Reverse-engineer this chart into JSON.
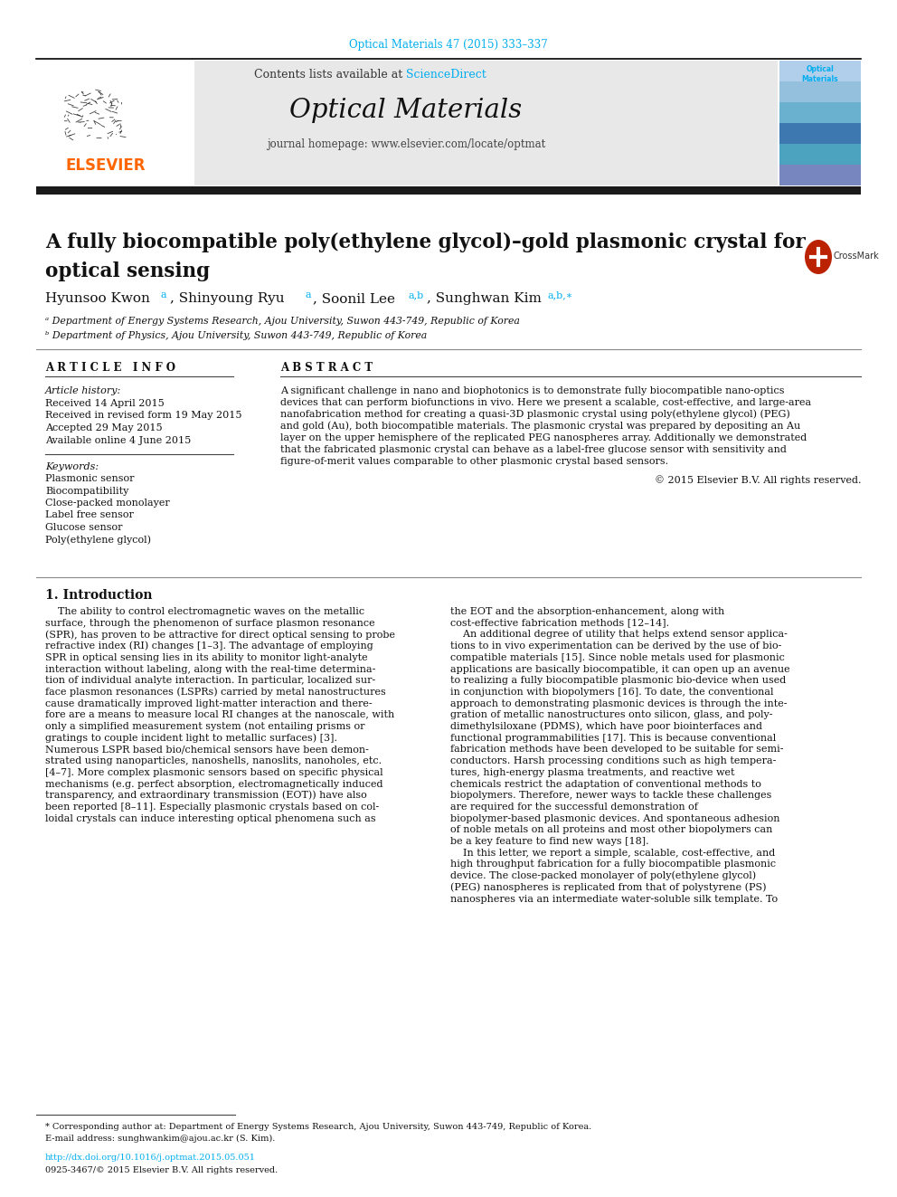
{
  "journal_ref": "Optical Materials 47 (2015) 333–337",
  "journal_ref_color": "#00AEEF",
  "contents_text": "Contents lists available at ",
  "sciencedirect_text": "ScienceDirect",
  "sciencedirect_color": "#00AEEF",
  "journal_name": "Optical Materials",
  "journal_homepage": "journal homepage: www.elsevier.com/locate/optmat",
  "header_bg": "#E8E8E8",
  "black_bar_color": "#1a1a1a",
  "title_line1": "A fully biocompatible poly(ethylene glycol)–gold plasmonic crystal for",
  "title_line2": "optical sensing",
  "affil_a": "ᵃ Department of Energy Systems Research, Ajou University, Suwon 443-749, Republic of Korea",
  "affil_b": "ᵇ Department of Physics, Ajou University, Suwon 443-749, Republic of Korea",
  "article_history_label": "Article history:",
  "received": "Received 14 April 2015",
  "revised": "Received in revised form 19 May 2015",
  "accepted": "Accepted 29 May 2015",
  "available": "Available online 4 June 2015",
  "keywords": [
    "Plasmonic sensor",
    "Biocompatibility",
    "Close-packed monolayer",
    "Label free sensor",
    "Glucose sensor",
    "Poly(ethylene glycol)"
  ],
  "abstract_lines": [
    "A significant challenge in nano and biophotonics is to demonstrate fully biocompatible nano-optics",
    "devices that can perform biofunctions in vivo. Here we present a scalable, cost-effective, and large-area",
    "nanofabrication method for creating a quasi-3D plasmonic crystal using poly(ethylene glycol) (PEG)",
    "and gold (Au), both biocompatible materials. The plasmonic crystal was prepared by depositing an Au",
    "layer on the upper hemisphere of the replicated PEG nanospheres array. Additionally we demonstrated",
    "that the fabricated plasmonic crystal can behave as a label-free glucose sensor with sensitivity and",
    "figure-of-merit values comparable to other plasmonic crystal based sensors."
  ],
  "copyright": "© 2015 Elsevier B.V. All rights reserved.",
  "intro_left": [
    "    The ability to control electromagnetic waves on the metallic",
    "surface, through the phenomenon of surface plasmon resonance",
    "(SPR), has proven to be attractive for direct optical sensing to probe",
    "refractive index (RI) changes [1–3]. The advantage of employing",
    "SPR in optical sensing lies in its ability to monitor light-analyte",
    "interaction without labeling, along with the real-time determina-",
    "tion of individual analyte interaction. In particular, localized sur-",
    "face plasmon resonances (LSPRs) carried by metal nanostructures",
    "cause dramatically improved light-matter interaction and there-",
    "fore are a means to measure local RI changes at the nanoscale, with",
    "only a simplified measurement system (not entailing prisms or",
    "gratings to couple incident light to metallic surfaces) [3].",
    "Numerous LSPR based bio/chemical sensors have been demon-",
    "strated using nanoparticles, nanoshells, nanoslits, nanoholes, etc.",
    "[4–7]. More complex plasmonic sensors based on specific physical",
    "mechanisms (e.g. perfect absorption, electromagnetically induced",
    "transparency, and extraordinary transmission (EOT)) have also",
    "been reported [8–11]. Especially plasmonic crystals based on col-",
    "loidal crystals can induce interesting optical phenomena such as"
  ],
  "intro_right": [
    "the EOT and the absorption-enhancement, along with",
    "cost-effective fabrication methods [12–14].",
    "    An additional degree of utility that helps extend sensor applica-",
    "tions to in vivo experimentation can be derived by the use of bio-",
    "compatible materials [15]. Since noble metals used for plasmonic",
    "applications are basically biocompatible, it can open up an avenue",
    "to realizing a fully biocompatible plasmonic bio-device when used",
    "in conjunction with biopolymers [16]. To date, the conventional",
    "approach to demonstrating plasmonic devices is through the inte-",
    "gration of metallic nanostructures onto silicon, glass, and poly-",
    "dimethylsiloxane (PDMS), which have poor biointerfaces and",
    "functional programmabilities [17]. This is because conventional",
    "fabrication methods have been developed to be suitable for semi-",
    "conductors. Harsh processing conditions such as high tempera-",
    "tures, high-energy plasma treatments, and reactive wet",
    "chemicals restrict the adaptation of conventional methods to",
    "biopolymers. Therefore, newer ways to tackle these challenges",
    "are required for the successful demonstration of",
    "biopolymer-based plasmonic devices. And spontaneous adhesion",
    "of noble metals on all proteins and most other biopolymers can",
    "be a key feature to find new ways [18].",
    "    In this letter, we report a simple, scalable, cost-effective, and",
    "high throughput fabrication for a fully biocompatible plasmonic",
    "device. The close-packed monolayer of poly(ethylene glycol)",
    "(PEG) nanospheres is replicated from that of polystyrene (PS)",
    "nanospheres via an intermediate water-soluble silk template. To"
  ],
  "footnote_star": "* Corresponding author at: Department of Energy Systems Research, Ajou University, Suwon 443-749, Republic of Korea.",
  "footnote_email": "E-mail address: sunghwankim@ajou.ac.kr (S. Kim).",
  "doi_text": "http://dx.doi.org/10.1016/j.optmat.2015.05.051",
  "doi_color": "#00AEEF",
  "issn_text": "0925-3467/© 2015 Elsevier B.V. All rights reserved.",
  "bg_color": "#ffffff",
  "superscript_color": "#00AEEF",
  "elsevier_color": "#FF6600"
}
